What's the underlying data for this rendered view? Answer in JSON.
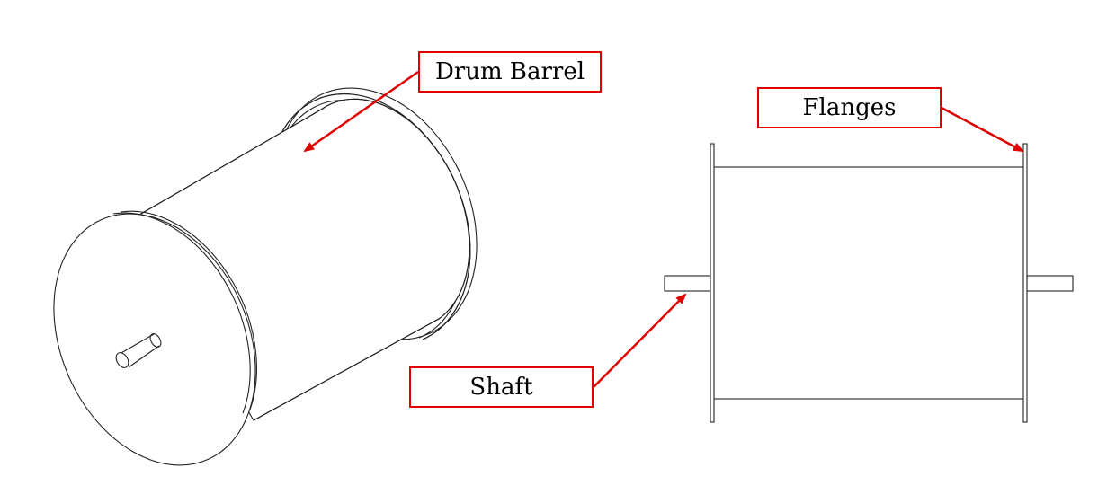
{
  "labels": {
    "drum_barrel": "Drum Barrel",
    "flanges": "Flanges",
    "shaft": "Shaft"
  },
  "colors": {
    "callout": "#e00000",
    "line": "#222222",
    "background": "#ffffff"
  }
}
